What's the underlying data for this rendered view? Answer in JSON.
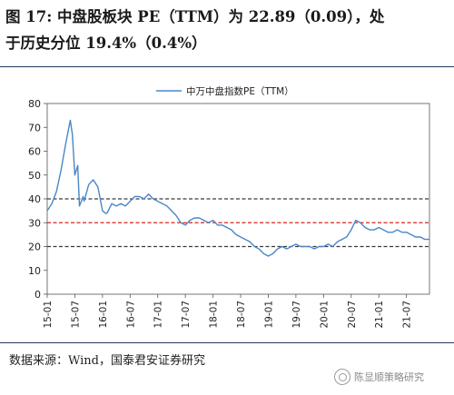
{
  "figure": {
    "title_line1": "图 17:    中盘股板块 PE（TTM）为 22.89（0.09），处",
    "title_line2": "于历史分位 19.4%（0.4%）",
    "source": "数据来源：Wind，国泰君安证券研究",
    "watermark": "陈显顺策略研究"
  },
  "colors": {
    "series": "#4a86c8",
    "mean_line": "#3a3a3a",
    "mean_plus_sd": "#d9241e",
    "rule": "#1f3a5f"
  },
  "chart_data": {
    "type": "line",
    "legend": "中万中盘指数PE（TTM）",
    "legend_position": "top-center",
    "ylim": [
      0,
      80
    ],
    "yticks": [
      0,
      10,
      20,
      30,
      40,
      50,
      60,
      70,
      80
    ],
    "xlim": [
      "2015-01",
      "2021-12"
    ],
    "xticks": [
      "15-01",
      "15-07",
      "16-01",
      "16-07",
      "17-01",
      "17-07",
      "18-01",
      "18-07",
      "19-01",
      "19-07",
      "20-01",
      "20-07",
      "21-01",
      "21-07"
    ],
    "grid": false,
    "reference_lines": [
      {
        "value": 40,
        "style": "dashed",
        "color": "#3a3a3a"
      },
      {
        "value": 30,
        "style": "dashed",
        "color": "#d9241e"
      },
      {
        "value": 20,
        "style": "dashed",
        "color": "#3a3a3a"
      }
    ],
    "series": [
      {
        "name": "中万中盘指数PE（TTM）",
        "x": [
          "2015-01",
          "2015-02",
          "2015-03",
          "2015-04",
          "2015-05",
          "2015-06",
          "2015-06-15",
          "2015-07",
          "2015-07-20",
          "2015-08",
          "2015-08-25",
          "2015-09",
          "2015-10",
          "2015-11",
          "2015-12",
          "2016-01",
          "2016-01-20",
          "2016-02",
          "2016-03",
          "2016-04",
          "2016-05",
          "2016-06",
          "2016-07",
          "2016-08",
          "2016-09",
          "2016-10",
          "2016-11",
          "2016-12",
          "2017-01",
          "2017-02",
          "2017-03",
          "2017-04",
          "2017-05",
          "2017-06",
          "2017-07",
          "2017-08",
          "2017-09",
          "2017-10",
          "2017-11",
          "2017-12",
          "2018-01",
          "2018-02",
          "2018-03",
          "2018-04",
          "2018-05",
          "2018-06",
          "2018-07",
          "2018-08",
          "2018-09",
          "2018-10",
          "2018-11",
          "2018-12",
          "2019-01",
          "2019-02",
          "2019-03",
          "2019-04",
          "2019-05",
          "2019-06",
          "2019-07",
          "2019-08",
          "2019-09",
          "2019-10",
          "2019-11",
          "2019-12",
          "2020-01",
          "2020-02",
          "2020-03",
          "2020-04",
          "2020-05",
          "2020-06",
          "2020-07",
          "2020-08",
          "2020-09",
          "2020-10",
          "2020-11",
          "2020-12",
          "2021-01",
          "2021-02",
          "2021-03",
          "2021-04",
          "2021-05",
          "2021-06",
          "2021-07",
          "2021-08",
          "2021-09",
          "2021-10",
          "2021-11",
          "2021-12"
        ],
        "values": [
          35,
          38,
          43,
          52,
          63,
          73,
          67,
          50,
          54,
          37,
          41,
          39,
          46,
          48,
          45,
          35,
          34,
          34,
          38,
          37,
          38,
          37,
          39,
          41,
          41,
          40,
          42,
          40,
          39,
          38,
          37,
          35,
          33,
          30,
          29,
          31,
          32,
          32,
          31,
          30,
          31,
          29,
          29,
          28,
          27,
          25,
          24,
          23,
          22,
          20,
          19,
          17,
          16,
          17,
          19,
          20,
          19,
          20,
          21,
          20,
          20,
          20,
          19,
          20,
          20,
          21,
          20,
          22,
          23,
          24,
          27,
          31,
          30,
          28,
          27,
          27,
          28,
          27,
          26,
          26,
          27,
          26,
          26,
          25,
          24,
          24,
          23,
          23
        ]
      }
    ]
  }
}
